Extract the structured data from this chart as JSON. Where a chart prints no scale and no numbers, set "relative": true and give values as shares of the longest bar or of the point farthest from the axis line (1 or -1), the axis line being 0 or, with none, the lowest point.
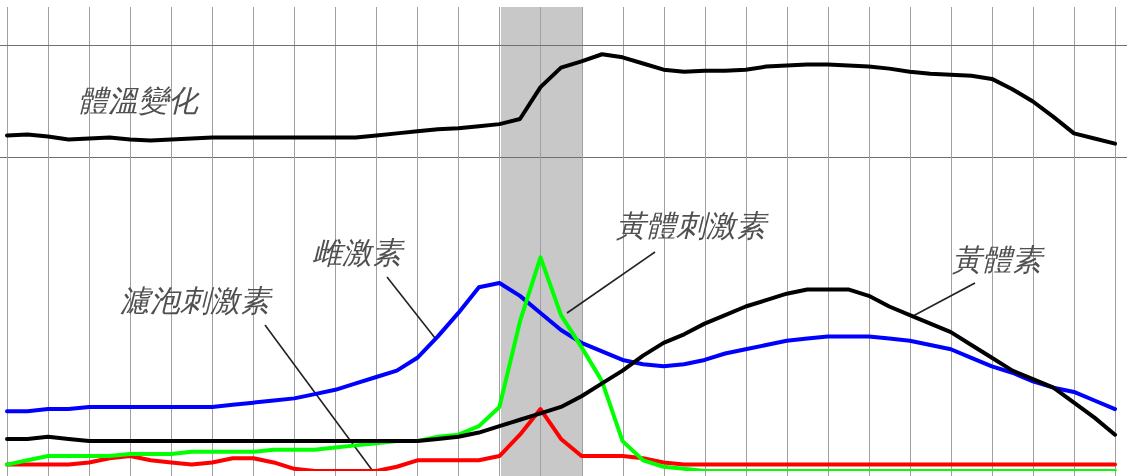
{
  "chart_data": [
    {
      "type": "line",
      "relative": true,
      "grid": "x",
      "tick_labels": false,
      "marker": "none",
      "categories": [
        null,
        null,
        null,
        null,
        null,
        null,
        null,
        null,
        null,
        null,
        null,
        null,
        null,
        null,
        null,
        null,
        null,
        null,
        null,
        null,
        null,
        null,
        null,
        null,
        null,
        null,
        null,
        null,
        null,
        null,
        null,
        null,
        null,
        null,
        null,
        null,
        null,
        null,
        null,
        null,
        null,
        null,
        null,
        null,
        null,
        null,
        null,
        null,
        null,
        null,
        null,
        null,
        null,
        null,
        null
      ],
      "series": [
        {
          "name": "體溫變化",
          "color": "#000000",
          "values": [
            0.21,
            0.22,
            0.2,
            0.17,
            0.18,
            0.19,
            0.17,
            0.16,
            0.17,
            0.18,
            0.19,
            0.19,
            0.19,
            0.19,
            0.19,
            0.19,
            0.19,
            0.19,
            0.21,
            0.23,
            0.25,
            0.27,
            0.28,
            0.3,
            0.32,
            0.37,
            0.68,
            0.87,
            0.93,
            1.0,
            0.97,
            0.91,
            0.85,
            0.83,
            0.84,
            0.84,
            0.85,
            0.88,
            0.89,
            0.9,
            0.9,
            0.89,
            0.88,
            0.86,
            0.83,
            0.81,
            0.8,
            0.79,
            0.76,
            0.66,
            0.54,
            0.39,
            0.23,
            0.18,
            0.13
          ]
        }
      ]
    },
    {
      "type": "line",
      "relative": true,
      "grid": "x",
      "tick_labels": false,
      "marker": "none",
      "categories": [
        null,
        null,
        null,
        null,
        null,
        null,
        null,
        null,
        null,
        null,
        null,
        null,
        null,
        null,
        null,
        null,
        null,
        null,
        null,
        null,
        null,
        null,
        null,
        null,
        null,
        null,
        null,
        null,
        null,
        null,
        null,
        null,
        null,
        null,
        null,
        null,
        null,
        null,
        null,
        null,
        null,
        null,
        null,
        null,
        null,
        null,
        null,
        null,
        null,
        null,
        null,
        null,
        null,
        null,
        null
      ],
      "series": [
        {
          "name": "濾泡刺激素",
          "color": "#ff0000",
          "values": [
            0.03,
            0.03,
            0.03,
            0.03,
            0.04,
            0.06,
            0.07,
            0.05,
            0.04,
            0.03,
            0.04,
            0.06,
            0.06,
            0.04,
            0.01,
            0.0,
            0.0,
            0.0,
            0.0,
            0.02,
            0.05,
            0.05,
            0.05,
            0.05,
            0.07,
            0.17,
            0.29,
            0.15,
            0.07,
            0.07,
            0.07,
            0.06,
            0.04,
            0.03,
            0.03,
            0.03,
            0.03,
            0.03,
            0.03,
            0.03,
            0.03,
            0.03,
            0.03,
            0.03,
            0.03,
            0.03,
            0.03,
            0.03,
            0.03,
            0.03,
            0.03,
            0.03,
            0.03,
            0.03,
            0.03
          ]
        },
        {
          "name": "雌激素",
          "color": "#0000ff",
          "values": [
            0.28,
            0.28,
            0.29,
            0.29,
            0.3,
            0.3,
            0.3,
            0.3,
            0.3,
            0.3,
            0.3,
            0.31,
            0.32,
            0.33,
            0.34,
            0.36,
            0.38,
            0.41,
            0.44,
            0.47,
            0.53,
            0.63,
            0.74,
            0.86,
            0.88,
            0.82,
            0.74,
            0.66,
            0.6,
            0.56,
            0.52,
            0.5,
            0.49,
            0.5,
            0.52,
            0.55,
            0.57,
            0.59,
            0.61,
            0.62,
            0.63,
            0.63,
            0.63,
            0.62,
            0.61,
            0.59,
            0.57,
            0.53,
            0.49,
            0.46,
            0.42,
            0.39,
            0.37,
            0.33,
            0.29
          ]
        },
        {
          "name": "黃體刺激素",
          "color": "#00ff00",
          "values": [
            0.03,
            0.05,
            0.07,
            0.07,
            0.07,
            0.07,
            0.08,
            0.08,
            0.08,
            0.09,
            0.09,
            0.09,
            0.09,
            0.1,
            0.1,
            0.1,
            0.11,
            0.12,
            0.13,
            0.14,
            0.14,
            0.16,
            0.17,
            0.21,
            0.3,
            0.7,
            1.0,
            0.73,
            0.58,
            0.42,
            0.14,
            0.05,
            0.02,
            0.01,
            0.0,
            0.0,
            0.0,
            0.0,
            0.0,
            0.0,
            0.0,
            0.0,
            0.0,
            0.0,
            0.0,
            0.0,
            0.0,
            0.0,
            0.0,
            0.0,
            0.0,
            0.0,
            0.0,
            0.0,
            0.0
          ]
        },
        {
          "name": "黃體素",
          "color": "#000000",
          "values": [
            0.15,
            0.15,
            0.16,
            0.15,
            0.14,
            0.14,
            0.14,
            0.14,
            0.14,
            0.14,
            0.14,
            0.14,
            0.14,
            0.14,
            0.14,
            0.14,
            0.14,
            0.14,
            0.14,
            0.14,
            0.14,
            0.15,
            0.16,
            0.18,
            0.21,
            0.24,
            0.27,
            0.3,
            0.35,
            0.41,
            0.47,
            0.54,
            0.6,
            0.64,
            0.69,
            0.73,
            0.77,
            0.8,
            0.83,
            0.85,
            0.85,
            0.85,
            0.82,
            0.77,
            0.73,
            0.69,
            0.65,
            0.59,
            0.53,
            0.47,
            0.43,
            0.39,
            0.32,
            0.25,
            0.17
          ]
        }
      ]
    }
  ]
}
